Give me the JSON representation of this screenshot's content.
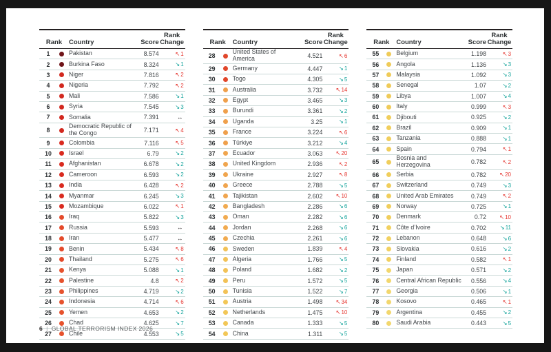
{
  "footer": {
    "page_number": "6",
    "separator": "|",
    "title": "GLOBAL TERRORISM INDEX 2026"
  },
  "header": {
    "rank": "Rank",
    "country": "Country",
    "score": "Score",
    "rank_change": "Rank\nChange"
  },
  "icons": {
    "up": "↖",
    "down": "↘",
    "same": "↔"
  },
  "colors": {
    "up_arrow": "#e5352f",
    "down_arrow": "#12a39b",
    "same_arrow": "#231f20",
    "row_divider": "#c9d8d6",
    "header_rule": "#231f20"
  },
  "tables": [
    {
      "rows": [
        {
          "rank": "1",
          "country": "Pakistan",
          "score": "8.574",
          "dir": "up",
          "chg": "1",
          "dot": "#6f1419"
        },
        {
          "rank": "2",
          "country": "Burkina Faso",
          "score": "8.324",
          "dir": "down",
          "chg": "1",
          "dot": "#6f1419"
        },
        {
          "rank": "3",
          "country": "Niger",
          "score": "7.816",
          "dir": "up",
          "chg": "2",
          "dot": "#d2281e"
        },
        {
          "rank": "4",
          "country": "Nigeria",
          "score": "7.792",
          "dir": "up",
          "chg": "2",
          "dot": "#d2281e"
        },
        {
          "rank": "5",
          "country": "Mali",
          "score": "7.586",
          "dir": "down",
          "chg": "1",
          "dot": "#d2281e"
        },
        {
          "rank": "6",
          "country": "Syria",
          "score": "7.545",
          "dir": "down",
          "chg": "3",
          "dot": "#d2281e"
        },
        {
          "rank": "7",
          "country": "Somalia",
          "score": "7.391",
          "dir": "same",
          "chg": "",
          "dot": "#d2281e"
        },
        {
          "rank": "8",
          "country": "Democratic Republic of the Congo",
          "score": "7.171",
          "dir": "up",
          "chg": "4",
          "dot": "#d2281e"
        },
        {
          "rank": "9",
          "country": "Colombia",
          "score": "7.116",
          "dir": "up",
          "chg": "5",
          "dot": "#d92a1f"
        },
        {
          "rank": "10",
          "country": "Israel",
          "score": "6.79",
          "dir": "down",
          "chg": "2",
          "dot": "#d92a1f"
        },
        {
          "rank": "11",
          "country": "Afghanistan",
          "score": "6.678",
          "dir": "down",
          "chg": "2",
          "dot": "#d92a1f"
        },
        {
          "rank": "12",
          "country": "Cameroon",
          "score": "6.593",
          "dir": "down",
          "chg": "2",
          "dot": "#d92a1f"
        },
        {
          "rank": "13",
          "country": "India",
          "score": "6.428",
          "dir": "up",
          "chg": "2",
          "dot": "#d92a1f"
        },
        {
          "rank": "14",
          "country": "Myanmar",
          "score": "6.245",
          "dir": "down",
          "chg": "3",
          "dot": "#d92a1f"
        },
        {
          "rank": "15",
          "country": "Mozambique",
          "score": "6.022",
          "dir": "up",
          "chg": "1",
          "dot": "#d92a1f"
        },
        {
          "rank": "16",
          "country": "Iraq",
          "score": "5.822",
          "dir": "down",
          "chg": "3",
          "dot": "#e44a2a"
        },
        {
          "rank": "17",
          "country": "Russia",
          "score": "5.593",
          "dir": "same",
          "chg": "",
          "dot": "#e44a2a"
        },
        {
          "rank": "18",
          "country": "Iran",
          "score": "5.477",
          "dir": "same",
          "chg": "",
          "dot": "#e44a2a"
        },
        {
          "rank": "19",
          "country": "Benin",
          "score": "5.434",
          "dir": "up",
          "chg": "8",
          "dot": "#e44a2a"
        },
        {
          "rank": "20",
          "country": "Thailand",
          "score": "5.275",
          "dir": "up",
          "chg": "6",
          "dot": "#e44a2a"
        },
        {
          "rank": "21",
          "country": "Kenya",
          "score": "5.088",
          "dir": "down",
          "chg": "1",
          "dot": "#e6522d"
        },
        {
          "rank": "22",
          "country": "Palestine",
          "score": "4.8",
          "dir": "up",
          "chg": "2",
          "dot": "#e6522d"
        },
        {
          "rank": "23",
          "country": "Philippines",
          "score": "4.719",
          "dir": "down",
          "chg": "2",
          "dot": "#e6522d"
        },
        {
          "rank": "24",
          "country": "Indonesia",
          "score": "4.714",
          "dir": "up",
          "chg": "6",
          "dot": "#e6522d"
        },
        {
          "rank": "25",
          "country": "Yemen",
          "score": "4.653",
          "dir": "down",
          "chg": "2",
          "dot": "#e6522d"
        },
        {
          "rank": "26",
          "country": "Chad",
          "score": "4.625",
          "dir": "down",
          "chg": "7",
          "dot": "#e6522d"
        },
        {
          "rank": "27",
          "country": "Chile",
          "score": "4.553",
          "dir": "down",
          "chg": "5",
          "dot": "#e6522d"
        }
      ]
    },
    {
      "rows": [
        {
          "rank": "28",
          "country": "United States of America",
          "score": "4.521",
          "dir": "up",
          "chg": "6",
          "dot": "#e1472b"
        },
        {
          "rank": "29",
          "country": "Germany",
          "score": "4.447",
          "dir": "down",
          "chg": "1",
          "dot": "#e1472b"
        },
        {
          "rank": "30",
          "country": "Togo",
          "score": "4.305",
          "dir": "down",
          "chg": "5",
          "dot": "#e1472b"
        },
        {
          "rank": "31",
          "country": "Australia",
          "score": "3.732",
          "dir": "up",
          "chg": "14",
          "dot": "#efa04c"
        },
        {
          "rank": "32",
          "country": "Egypt",
          "score": "3.465",
          "dir": "down",
          "chg": "3",
          "dot": "#efa04c"
        },
        {
          "rank": "33",
          "country": "Burundi",
          "score": "3.361",
          "dir": "down",
          "chg": "2",
          "dot": "#efa04c"
        },
        {
          "rank": "34",
          "country": "Uganda",
          "score": "3.25",
          "dir": "down",
          "chg": "1",
          "dot": "#efa04c"
        },
        {
          "rank": "35",
          "country": "France",
          "score": "3.224",
          "dir": "up",
          "chg": "6",
          "dot": "#efa04c"
        },
        {
          "rank": "36",
          "country": "Türkiye",
          "score": "3.212",
          "dir": "down",
          "chg": "4",
          "dot": "#efa04c"
        },
        {
          "rank": "37",
          "country": "Ecuador",
          "score": "3.063",
          "dir": "up",
          "chg": "20",
          "dot": "#f0a54e"
        },
        {
          "rank": "38",
          "country": "United Kingdom",
          "score": "2.936",
          "dir": "up",
          "chg": "2",
          "dot": "#f0a54e"
        },
        {
          "rank": "39",
          "country": "Ukraine",
          "score": "2.927",
          "dir": "up",
          "chg": "8",
          "dot": "#f0a54e"
        },
        {
          "rank": "40",
          "country": "Greece",
          "score": "2.788",
          "dir": "down",
          "chg": "5",
          "dot": "#f0a54e"
        },
        {
          "rank": "41",
          "country": "Tajikistan",
          "score": "2.602",
          "dir": "up",
          "chg": "10",
          "dot": "#f0a54e"
        },
        {
          "rank": "42",
          "country": "Bangladesh",
          "score": "2.286",
          "dir": "down",
          "chg": "6",
          "dot": "#f1ab50"
        },
        {
          "rank": "43",
          "country": "Oman",
          "score": "2.282",
          "dir": "down",
          "chg": "6",
          "dot": "#f1ab50"
        },
        {
          "rank": "44",
          "country": "Jordan",
          "score": "2.268",
          "dir": "down",
          "chg": "6",
          "dot": "#f1ab50"
        },
        {
          "rank": "45",
          "country": "Czechia",
          "score": "2.261",
          "dir": "down",
          "chg": "6",
          "dot": "#f1ab50"
        },
        {
          "rank": "46",
          "country": "Sweden",
          "score": "1.839",
          "dir": "up",
          "chg": "4",
          "dot": "#f2c257"
        },
        {
          "rank": "47",
          "country": "Algeria",
          "score": "1.766",
          "dir": "down",
          "chg": "5",
          "dot": "#f2c257"
        },
        {
          "rank": "48",
          "country": "Poland",
          "score": "1.682",
          "dir": "down",
          "chg": "2",
          "dot": "#f2c257"
        },
        {
          "rank": "49",
          "country": "Peru",
          "score": "1.572",
          "dir": "down",
          "chg": "5",
          "dot": "#f2c257"
        },
        {
          "rank": "50",
          "country": "Tunisia",
          "score": "1.522",
          "dir": "down",
          "chg": "7",
          "dot": "#f2c257"
        },
        {
          "rank": "51",
          "country": "Austria",
          "score": "1.498",
          "dir": "up",
          "chg": "34",
          "dot": "#f2c757"
        },
        {
          "rank": "52",
          "country": "Netherlands",
          "score": "1.475",
          "dir": "up",
          "chg": "10",
          "dot": "#f2c757"
        },
        {
          "rank": "53",
          "country": "Canada",
          "score": "1.333",
          "dir": "down",
          "chg": "5",
          "dot": "#f2c757"
        },
        {
          "rank": "54",
          "country": "China",
          "score": "1.311",
          "dir": "down",
          "chg": "5",
          "dot": "#f2c757"
        }
      ]
    },
    {
      "rows": [
        {
          "rank": "55",
          "country": "Belgium",
          "score": "1.198",
          "dir": "up",
          "chg": "3",
          "dot": "#efcb59"
        },
        {
          "rank": "56",
          "country": "Angola",
          "score": "1.136",
          "dir": "down",
          "chg": "3",
          "dot": "#efcb59"
        },
        {
          "rank": "57",
          "country": "Malaysia",
          "score": "1.092",
          "dir": "down",
          "chg": "3",
          "dot": "#efcb59"
        },
        {
          "rank": "58",
          "country": "Senegal",
          "score": "1.07",
          "dir": "down",
          "chg": "2",
          "dot": "#efcb59"
        },
        {
          "rank": "59",
          "country": "Libya",
          "score": "1.007",
          "dir": "down",
          "chg": "4",
          "dot": "#efcb59"
        },
        {
          "rank": "60",
          "country": "Italy",
          "score": "0.999",
          "dir": "up",
          "chg": "3",
          "dot": "#efcb59"
        },
        {
          "rank": "61",
          "country": "Djibouti",
          "score": "0.925",
          "dir": "down",
          "chg": "2",
          "dot": "#f0ce5c"
        },
        {
          "rank": "62",
          "country": "Brazil",
          "score": "0.909",
          "dir": "down",
          "chg": "1",
          "dot": "#f0ce5c"
        },
        {
          "rank": "63",
          "country": "Tanzania",
          "score": "0.888",
          "dir": "down",
          "chg": "1",
          "dot": "#f0ce5c"
        },
        {
          "rank": "64",
          "country": "Spain",
          "score": "0.794",
          "dir": "up",
          "chg": "1",
          "dot": "#f0ce5c"
        },
        {
          "rank": "65",
          "country": "Bosnia and Herzegovina",
          "score": "0.782",
          "dir": "up",
          "chg": "2",
          "dot": "#f0ce5c"
        },
        {
          "rank": "66",
          "country": "Serbia",
          "score": "0.782",
          "dir": "up",
          "chg": "20",
          "dot": "#f0ce5c"
        },
        {
          "rank": "67",
          "country": "Switzerland",
          "score": "0.749",
          "dir": "down",
          "chg": "3",
          "dot": "#f0ce5c"
        },
        {
          "rank": "68",
          "country": "United Arab Emirates",
          "score": "0.749",
          "dir": "up",
          "chg": "2",
          "dot": "#f0ce5c"
        },
        {
          "rank": "69",
          "country": "Norway",
          "score": "0.725",
          "dir": "down",
          "chg": "1",
          "dot": "#f0ce5c"
        },
        {
          "rank": "70",
          "country": "Denmark",
          "score": "0.72",
          "dir": "up",
          "chg": "10",
          "dot": "#f0ce5c"
        },
        {
          "rank": "71",
          "country": "Côte d’Ivoire",
          "score": "0.702",
          "dir": "down",
          "chg": "11",
          "dot": "#f1d160"
        },
        {
          "rank": "72",
          "country": "Lebanon",
          "score": "0.648",
          "dir": "down",
          "chg": "6",
          "dot": "#f1d160"
        },
        {
          "rank": "73",
          "country": "Slovakia",
          "score": "0.616",
          "dir": "down",
          "chg": "2",
          "dot": "#f1d160"
        },
        {
          "rank": "74",
          "country": "Finland",
          "score": "0.582",
          "dir": "up",
          "chg": "1",
          "dot": "#f1d160"
        },
        {
          "rank": "75",
          "country": "Japan",
          "score": "0.571",
          "dir": "down",
          "chg": "2",
          "dot": "#f2d76e"
        },
        {
          "rank": "76",
          "country": "Central African Republic",
          "score": "0.556",
          "dir": "down",
          "chg": "4",
          "dot": "#f2d76e"
        },
        {
          "rank": "77",
          "country": "Georgia",
          "score": "0.506",
          "dir": "down",
          "chg": "1",
          "dot": "#f2d76e"
        },
        {
          "rank": "78",
          "country": "Kosovo",
          "score": "0.465",
          "dir": "up",
          "chg": "1",
          "dot": "#f2d76e"
        },
        {
          "rank": "79",
          "country": "Argentina",
          "score": "0.455",
          "dir": "down",
          "chg": "2",
          "dot": "#f2d76e"
        },
        {
          "rank": "80",
          "country": "Saudi Arabia",
          "score": "0.443",
          "dir": "down",
          "chg": "5",
          "dot": "#f2d76e"
        }
      ]
    }
  ]
}
